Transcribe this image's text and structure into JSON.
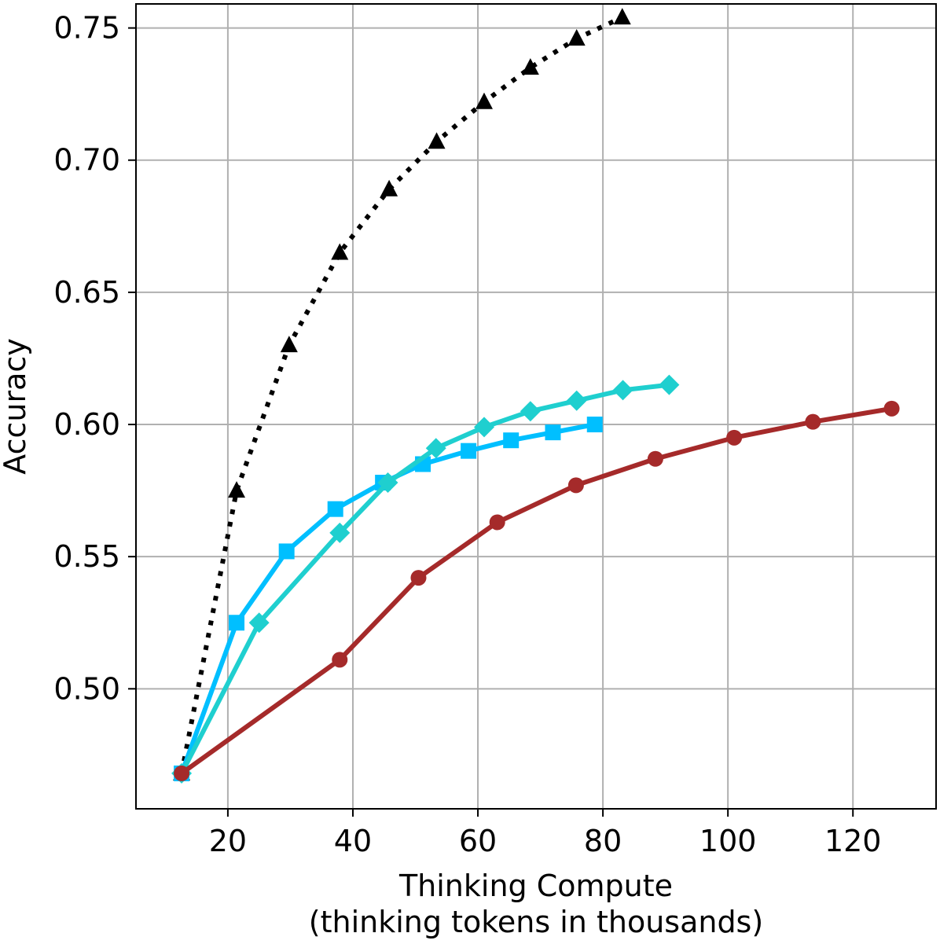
{
  "chart_data": {
    "type": "line",
    "title": "",
    "xlabel_line1": "Thinking Compute",
    "xlabel_line2": "(thinking tokens in thousands)",
    "ylabel": "Accuracy",
    "xlim": [
      5.3,
      133.3
    ],
    "ylim": [
      0.4546,
      0.7591
    ],
    "x_ticks": [
      20,
      40,
      60,
      80,
      100,
      120
    ],
    "x_tick_labels": [
      "20",
      "40",
      "60",
      "80",
      "100",
      "120"
    ],
    "y_ticks": [
      0.5,
      0.55,
      0.6,
      0.65,
      0.7,
      0.75
    ],
    "y_tick_labels": [
      "0.50",
      "0.55",
      "0.60",
      "0.65",
      "0.70",
      "0.75"
    ],
    "grid": true,
    "series": [
      {
        "color": "#000000",
        "marker": "triangle",
        "linestyle": "dotted",
        "x": [
          12.6,
          21.4,
          29.8,
          37.9,
          45.8,
          53.4,
          61.0,
          68.4,
          75.8,
          83.1
        ],
        "y": [
          0.468,
          0.575,
          0.63,
          0.665,
          0.689,
          0.707,
          0.722,
          0.735,
          0.746,
          0.754
        ]
      },
      {
        "color": "#00bfff",
        "marker": "square",
        "linestyle": "solid",
        "x": [
          12.6,
          21.4,
          29.4,
          37.2,
          44.8,
          51.2,
          58.5,
          65.3,
          72.0,
          78.7
        ],
        "y": [
          0.468,
          0.525,
          0.552,
          0.568,
          0.578,
          0.585,
          0.59,
          0.594,
          0.597,
          0.6
        ]
      },
      {
        "color": "#1fcfcf",
        "marker": "diamond",
        "linestyle": "solid",
        "x": [
          12.6,
          25.0,
          37.9,
          45.6,
          53.3,
          61.0,
          68.4,
          75.8,
          83.2,
          90.6
        ],
        "y": [
          0.468,
          0.525,
          0.559,
          0.578,
          0.591,
          0.599,
          0.605,
          0.609,
          0.613,
          0.615
        ]
      },
      {
        "color": "#a52a2a",
        "marker": "circle",
        "linestyle": "solid",
        "x": [
          12.6,
          37.9,
          50.5,
          63.1,
          75.7,
          88.4,
          101.0,
          113.6,
          126.2
        ],
        "y": [
          0.468,
          0.511,
          0.542,
          0.563,
          0.577,
          0.587,
          0.595,
          0.601,
          0.606
        ]
      }
    ]
  }
}
